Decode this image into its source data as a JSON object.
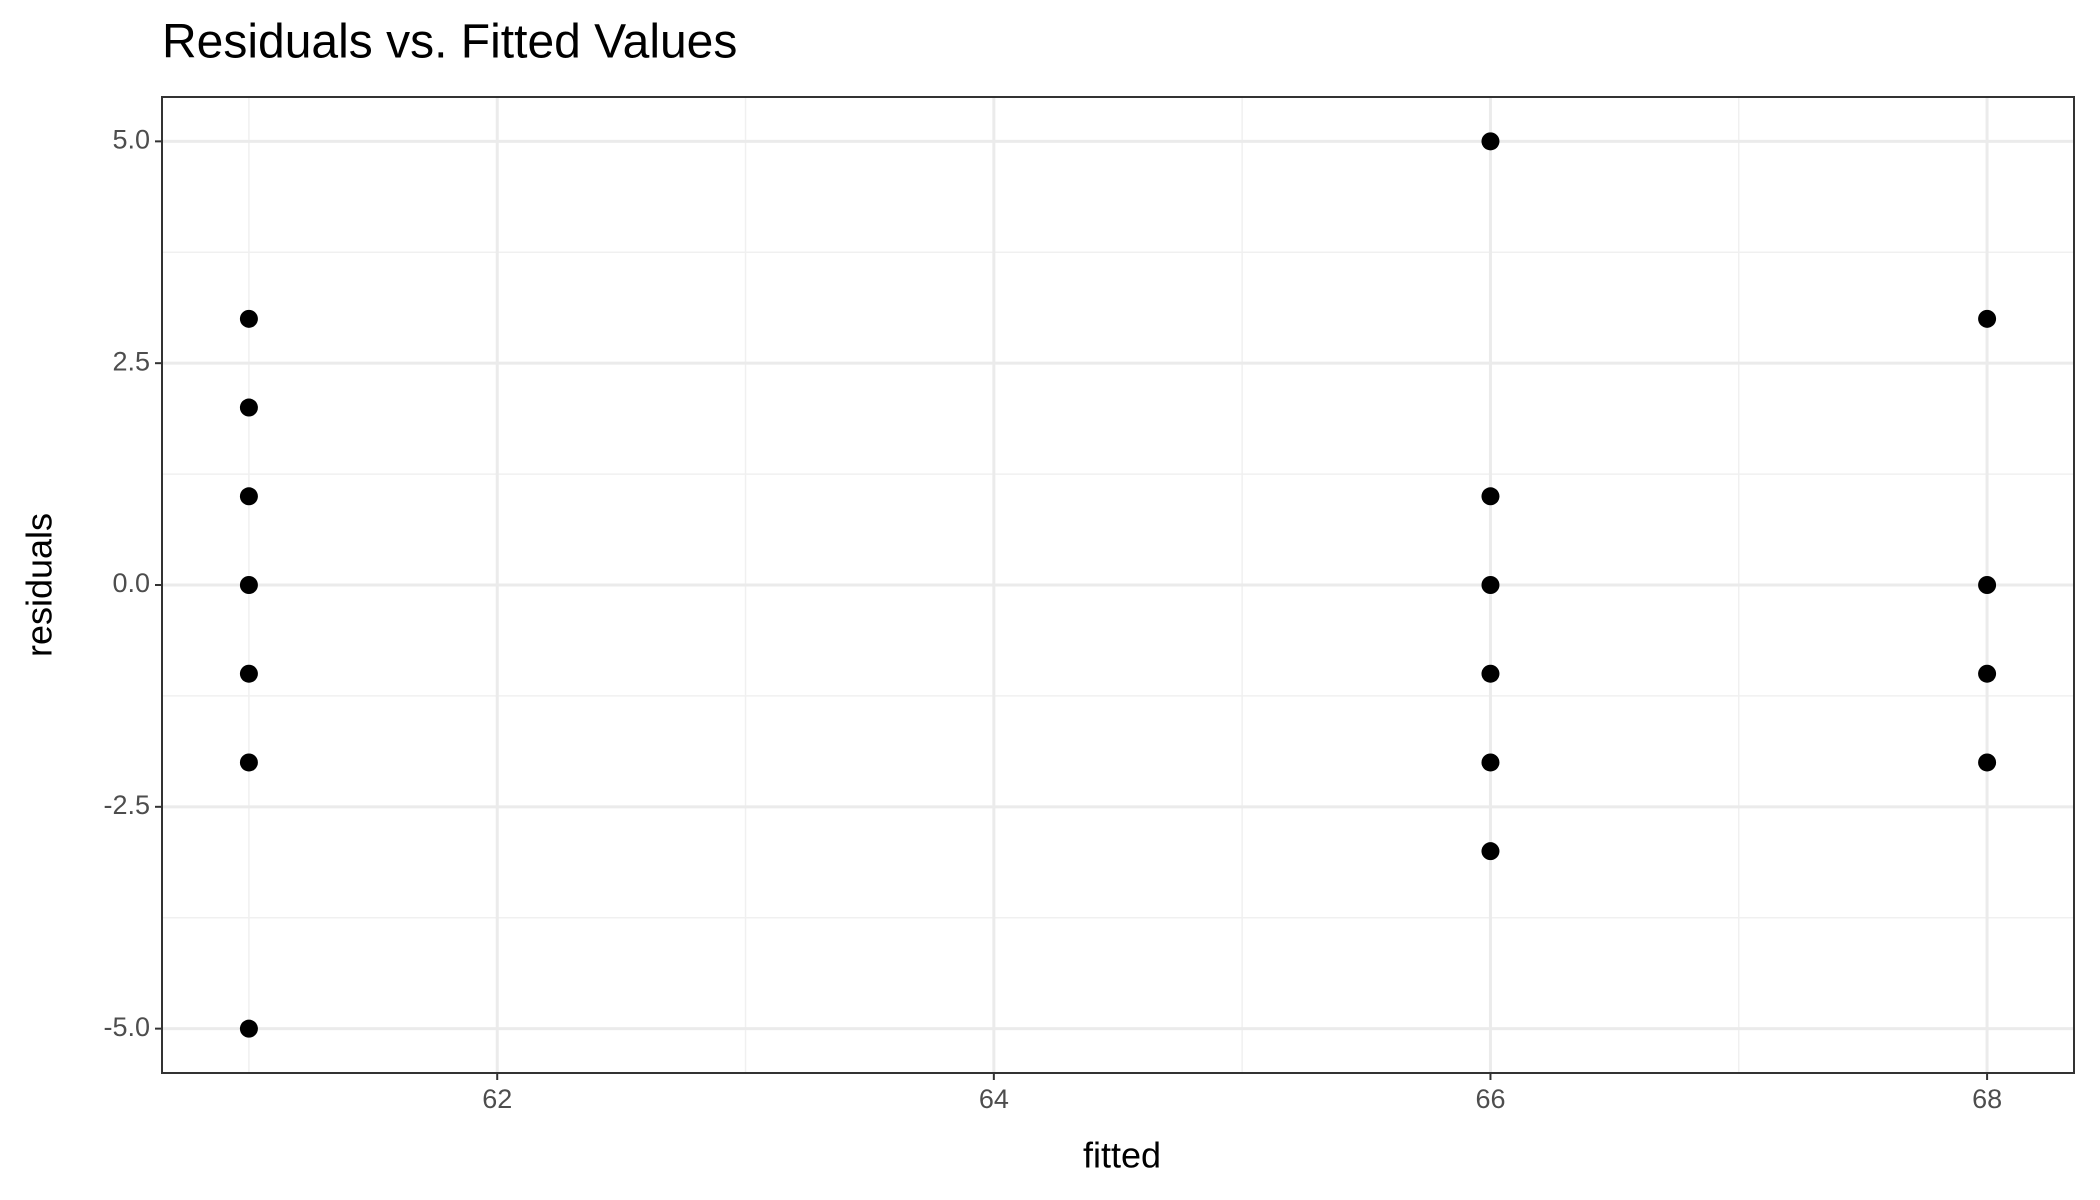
{
  "chart_data": {
    "type": "scatter",
    "title": "Residuals vs. Fitted Values",
    "x_label": "fitted",
    "y_label": "residuals",
    "series": [
      {
        "color": "#000000",
        "x": [
          61,
          61,
          61,
          61,
          61,
          61,
          61,
          66,
          66,
          66,
          66,
          66,
          66,
          68,
          68,
          68,
          68
        ],
        "values": [
          3,
          2,
          1,
          0,
          -1,
          -2,
          -5,
          5,
          1,
          0,
          -1,
          -2,
          -3,
          3,
          0,
          -1,
          -2
        ]
      }
    ],
    "xlim": [
      60.65,
      68.35
    ],
    "xticks": [
      62,
      64,
      66,
      68
    ],
    "ylim": [
      -5.5,
      5.5
    ],
    "yticks": [
      {
        "value": -5,
        "label": "-5.0"
      },
      {
        "value": -2.5,
        "label": "-2.5"
      },
      {
        "value": 0,
        "label": "0.0"
      },
      {
        "value": 2.5,
        "label": "2.5"
      },
      {
        "value": 5,
        "label": "5.0"
      }
    ],
    "grid": true
  }
}
